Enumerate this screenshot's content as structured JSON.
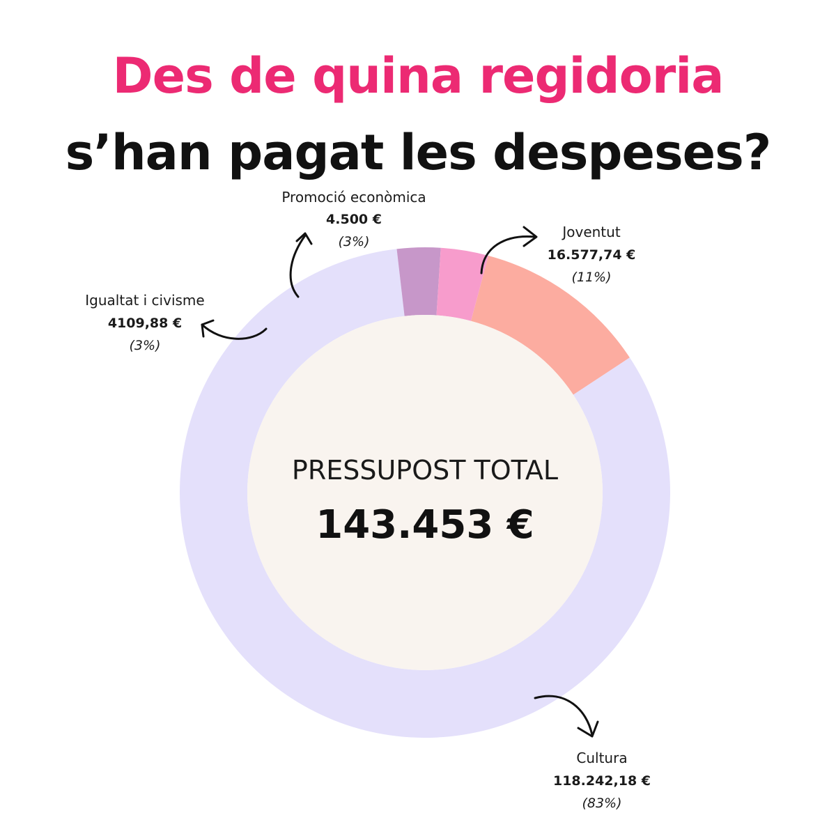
{
  "title": {
    "line1": "Des de quina regidoria",
    "line2": "s’han pagat les despeses?"
  },
  "center": {
    "heading": "PRESSUPOST TOTAL",
    "total": "143.453 €"
  },
  "colors": {
    "title_accent": "#ec2a73",
    "center_fill": "#f9f4ef"
  },
  "chart_data": {
    "type": "pie",
    "variant": "donut",
    "total": 143453,
    "series": [
      {
        "name": "Joventut",
        "value": 16577.74,
        "value_label": "16.577,74 €",
        "percent_label": "(11%)",
        "color": "#fcaca0"
      },
      {
        "name": "Cultura",
        "value": 118242.18,
        "value_label": "118.242,18 €",
        "percent_label": "(83%)",
        "color": "#e4e0fb"
      },
      {
        "name": "Igualtat i civisme",
        "value": 4109.88,
        "value_label": "4109,88 €",
        "percent_label": "(3%)",
        "color": "#c797c9"
      },
      {
        "name": "Promoció econòmica",
        "value": 4500,
        "value_label": "4.500 €",
        "percent_label": "(3%)",
        "color": "#f79ccc"
      }
    ]
  }
}
